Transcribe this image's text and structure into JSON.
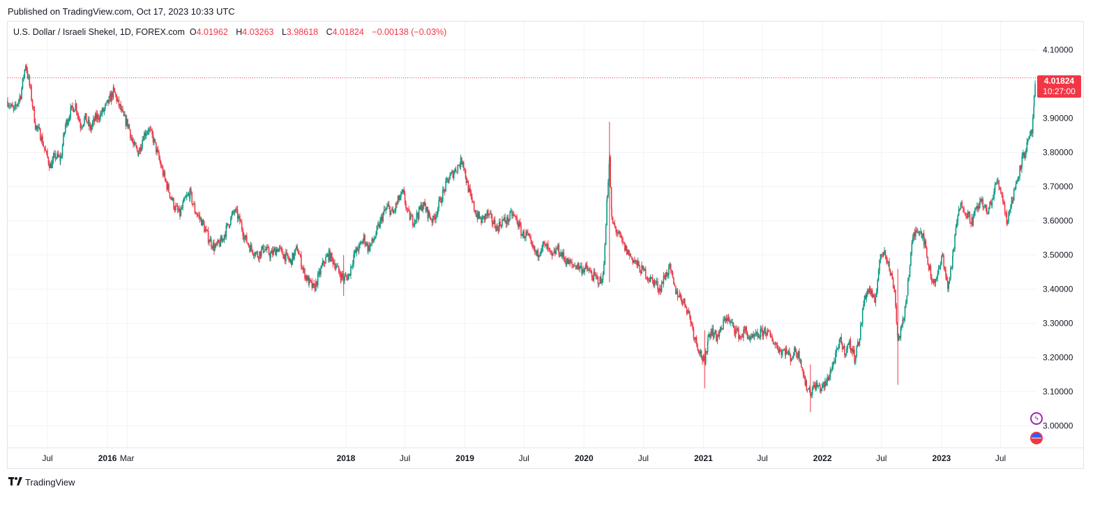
{
  "header": {
    "published": "Published on TradingView.com, Oct 17, 2023 10:33 UTC"
  },
  "legend": {
    "symbol": "U.S. Dollar / Israeli Shekel, 1D, FOREX.com",
    "open_label": "O",
    "open": "4.01962",
    "high_label": "H",
    "high": "4.03263",
    "low_label": "L",
    "low": "3.98618",
    "close_label": "C",
    "close": "4.01824",
    "change": "−0.00138 (−0.03%)"
  },
  "price_tag": {
    "price": "4.01824",
    "countdown": "10:27:00"
  },
  "footer": {
    "brand": "TradingView"
  },
  "colors": {
    "up": "#089981",
    "down": "#f23645",
    "grid": "#f0f3fa",
    "accent": "#f23645"
  },
  "icons": [
    "tradingview-logo-icon",
    "event-badge-icon",
    "us-flag-icon"
  ],
  "chart_data": {
    "type": "candlestick",
    "title": "",
    "xlabel": "",
    "ylabel": "",
    "ylim": [
      2.94,
      4.14
    ],
    "grid": true,
    "last_price": 4.01824,
    "y_ticks": [
      "4.10000",
      "3.90000",
      "3.80000",
      "3.70000",
      "3.60000",
      "3.50000",
      "3.40000",
      "3.30000",
      "3.20000",
      "3.10000",
      "3.00000"
    ],
    "y_tick_values": [
      4.1,
      3.9,
      3.8,
      3.7,
      3.6,
      3.5,
      3.4,
      3.3,
      3.2,
      3.1,
      3.0
    ],
    "x_ticks": [
      {
        "label": "Jul",
        "date": "2015-07-01",
        "bold": false
      },
      {
        "label": "2016",
        "date": "2016-01-01",
        "bold": true
      },
      {
        "label": "Mar",
        "date": "2016-03-01",
        "bold": false
      },
      {
        "label": "2018",
        "date": "2018-01-01",
        "bold": true
      },
      {
        "label": "Jul",
        "date": "2018-07-01",
        "bold": false
      },
      {
        "label": "2019",
        "date": "2019-01-01",
        "bold": true
      },
      {
        "label": "Jul",
        "date": "2019-07-01",
        "bold": false
      },
      {
        "label": "2020",
        "date": "2020-01-01",
        "bold": true
      },
      {
        "label": "Jul",
        "date": "2020-07-01",
        "bold": false
      },
      {
        "label": "2021",
        "date": "2021-01-01",
        "bold": true
      },
      {
        "label": "Jul",
        "date": "2021-07-01",
        "bold": false
      },
      {
        "label": "2022",
        "date": "2022-01-01",
        "bold": true
      },
      {
        "label": "Jul",
        "date": "2022-07-01",
        "bold": false
      },
      {
        "label": "2023",
        "date": "2023-01-01",
        "bold": true
      },
      {
        "label": "Jul",
        "date": "2023-07-01",
        "bold": false
      }
    ],
    "series": [
      {
        "close": [
          [
            "2015-03-01",
            3.95
          ],
          [
            "2015-03-20",
            3.92
          ],
          [
            "2015-04-10",
            3.97
          ],
          [
            "2015-04-25",
            4.06
          ],
          [
            "2015-05-10",
            3.98
          ],
          [
            "2015-05-25",
            3.88
          ],
          [
            "2015-06-10",
            3.85
          ],
          [
            "2015-06-25",
            3.8
          ],
          [
            "2015-07-10",
            3.76
          ],
          [
            "2015-07-25",
            3.79
          ],
          [
            "2015-08-10",
            3.78
          ],
          [
            "2015-08-25",
            3.88
          ],
          [
            "2015-09-10",
            3.92
          ],
          [
            "2015-09-25",
            3.94
          ],
          [
            "2015-10-10",
            3.88
          ],
          [
            "2015-10-25",
            3.9
          ],
          [
            "2015-11-10",
            3.87
          ],
          [
            "2015-11-25",
            3.9
          ],
          [
            "2015-12-10",
            3.91
          ],
          [
            "2015-12-25",
            3.93
          ],
          [
            "2016-01-10",
            3.96
          ],
          [
            "2016-01-20",
            3.98
          ],
          [
            "2016-02-05",
            3.94
          ],
          [
            "2016-02-20",
            3.9
          ],
          [
            "2016-03-05",
            3.88
          ],
          [
            "2016-03-20",
            3.82
          ],
          [
            "2016-04-05",
            3.8
          ],
          [
            "2016-04-20",
            3.85
          ],
          [
            "2016-05-05",
            3.87
          ],
          [
            "2016-05-20",
            3.84
          ],
          [
            "2016-06-10",
            3.77
          ],
          [
            "2016-06-25",
            3.72
          ],
          [
            "2016-07-10",
            3.68
          ],
          [
            "2016-07-25",
            3.64
          ],
          [
            "2016-08-10",
            3.62
          ],
          [
            "2016-08-25",
            3.66
          ],
          [
            "2016-09-10",
            3.68
          ],
          [
            "2016-09-25",
            3.63
          ],
          [
            "2016-10-15",
            3.6
          ],
          [
            "2016-11-05",
            3.55
          ],
          [
            "2016-11-25",
            3.52
          ],
          [
            "2016-12-15",
            3.54
          ],
          [
            "2017-01-10",
            3.6
          ],
          [
            "2017-01-25",
            3.63
          ],
          [
            "2017-02-10",
            3.6
          ],
          [
            "2017-02-25",
            3.55
          ],
          [
            "2017-03-15",
            3.52
          ],
          [
            "2017-04-05",
            3.5
          ],
          [
            "2017-04-25",
            3.52
          ],
          [
            "2017-05-15",
            3.5
          ],
          [
            "2017-06-05",
            3.52
          ],
          [
            "2017-06-25",
            3.5
          ],
          [
            "2017-07-15",
            3.48
          ],
          [
            "2017-08-05",
            3.52
          ],
          [
            "2017-08-25",
            3.45
          ],
          [
            "2017-09-10",
            3.42
          ],
          [
            "2017-09-25",
            3.4
          ],
          [
            "2017-10-10",
            3.44
          ],
          [
            "2017-10-25",
            3.48
          ],
          [
            "2017-11-10",
            3.5
          ],
          [
            "2017-11-25",
            3.48
          ],
          [
            "2017-12-10",
            3.45
          ],
          [
            "2017-12-25",
            3.43
          ],
          [
            "2018-01-10",
            3.44
          ],
          [
            "2018-01-25",
            3.5
          ],
          [
            "2018-02-10",
            3.52
          ],
          [
            "2018-02-25",
            3.55
          ],
          [
            "2018-03-10",
            3.52
          ],
          [
            "2018-03-25",
            3.54
          ],
          [
            "2018-04-10",
            3.58
          ],
          [
            "2018-04-25",
            3.62
          ],
          [
            "2018-05-10",
            3.64
          ],
          [
            "2018-05-25",
            3.62
          ],
          [
            "2018-06-10",
            3.66
          ],
          [
            "2018-06-25",
            3.68
          ],
          [
            "2018-07-10",
            3.62
          ],
          [
            "2018-07-25",
            3.6
          ],
          [
            "2018-08-10",
            3.62
          ],
          [
            "2018-08-25",
            3.65
          ],
          [
            "2018-09-10",
            3.62
          ],
          [
            "2018-09-25",
            3.6
          ],
          [
            "2018-10-10",
            3.64
          ],
          [
            "2018-10-25",
            3.68
          ],
          [
            "2018-11-10",
            3.72
          ],
          [
            "2018-11-25",
            3.74
          ],
          [
            "2018-12-10",
            3.76
          ],
          [
            "2018-12-25",
            3.78
          ],
          [
            "2019-01-05",
            3.72
          ],
          [
            "2019-01-20",
            3.66
          ],
          [
            "2019-02-05",
            3.62
          ],
          [
            "2019-02-20",
            3.6
          ],
          [
            "2019-03-10",
            3.62
          ],
          [
            "2019-03-25",
            3.6
          ],
          [
            "2019-04-10",
            3.58
          ],
          [
            "2019-04-25",
            3.6
          ],
          [
            "2019-05-10",
            3.6
          ],
          [
            "2019-05-25",
            3.62
          ],
          [
            "2019-06-10",
            3.6
          ],
          [
            "2019-06-25",
            3.56
          ],
          [
            "2019-07-10",
            3.56
          ],
          [
            "2019-07-25",
            3.52
          ],
          [
            "2019-08-10",
            3.5
          ],
          [
            "2019-08-25",
            3.53
          ],
          [
            "2019-09-10",
            3.52
          ],
          [
            "2019-09-25",
            3.49
          ],
          [
            "2019-10-10",
            3.52
          ],
          [
            "2019-10-25",
            3.5
          ],
          [
            "2019-11-10",
            3.48
          ],
          [
            "2019-11-25",
            3.47
          ],
          [
            "2019-12-10",
            3.47
          ],
          [
            "2019-12-25",
            3.46
          ],
          [
            "2020-01-10",
            3.46
          ],
          [
            "2020-01-25",
            3.44
          ],
          [
            "2020-02-10",
            3.43
          ],
          [
            "2020-02-25",
            3.42
          ],
          [
            "2020-03-05",
            3.52
          ],
          [
            "2020-03-12",
            3.68
          ],
          [
            "2020-03-19",
            3.78
          ],
          [
            "2020-03-26",
            3.6
          ],
          [
            "2020-04-05",
            3.58
          ],
          [
            "2020-04-20",
            3.55
          ],
          [
            "2020-05-05",
            3.52
          ],
          [
            "2020-05-20",
            3.5
          ],
          [
            "2020-06-05",
            3.48
          ],
          [
            "2020-06-20",
            3.46
          ],
          [
            "2020-07-05",
            3.45
          ],
          [
            "2020-07-20",
            3.43
          ],
          [
            "2020-08-05",
            3.42
          ],
          [
            "2020-08-20",
            3.4
          ],
          [
            "2020-09-05",
            3.44
          ],
          [
            "2020-09-20",
            3.46
          ],
          [
            "2020-10-05",
            3.4
          ],
          [
            "2020-10-20",
            3.38
          ],
          [
            "2020-11-05",
            3.36
          ],
          [
            "2020-11-20",
            3.32
          ],
          [
            "2020-12-05",
            3.26
          ],
          [
            "2020-12-20",
            3.22
          ],
          [
            "2021-01-05",
            3.18
          ],
          [
            "2021-01-15",
            3.26
          ],
          [
            "2021-01-25",
            3.28
          ],
          [
            "2021-02-10",
            3.26
          ],
          [
            "2021-02-25",
            3.28
          ],
          [
            "2021-03-10",
            3.32
          ],
          [
            "2021-03-25",
            3.3
          ],
          [
            "2021-04-10",
            3.28
          ],
          [
            "2021-04-25",
            3.26
          ],
          [
            "2021-05-10",
            3.28
          ],
          [
            "2021-05-25",
            3.25
          ],
          [
            "2021-06-10",
            3.26
          ],
          [
            "2021-06-25",
            3.27
          ],
          [
            "2021-07-10",
            3.28
          ],
          [
            "2021-07-25",
            3.26
          ],
          [
            "2021-08-10",
            3.24
          ],
          [
            "2021-08-25",
            3.22
          ],
          [
            "2021-09-10",
            3.22
          ],
          [
            "2021-09-25",
            3.2
          ],
          [
            "2021-10-10",
            3.22
          ],
          [
            "2021-10-25",
            3.2
          ],
          [
            "2021-11-10",
            3.12
          ],
          [
            "2021-11-25",
            3.1
          ],
          [
            "2021-12-10",
            3.12
          ],
          [
            "2021-12-25",
            3.11
          ],
          [
            "2022-01-10",
            3.12
          ],
          [
            "2022-01-25",
            3.16
          ],
          [
            "2022-02-10",
            3.2
          ],
          [
            "2022-02-25",
            3.25
          ],
          [
            "2022-03-10",
            3.22
          ],
          [
            "2022-03-25",
            3.24
          ],
          [
            "2022-04-10",
            3.2
          ],
          [
            "2022-04-25",
            3.26
          ],
          [
            "2022-05-10",
            3.38
          ],
          [
            "2022-05-25",
            3.4
          ],
          [
            "2022-06-10",
            3.36
          ],
          [
            "2022-06-25",
            3.48
          ],
          [
            "2022-07-10",
            3.52
          ],
          [
            "2022-07-25",
            3.46
          ],
          [
            "2022-08-10",
            3.4
          ],
          [
            "2022-08-20",
            3.25
          ],
          [
            "2022-09-05",
            3.3
          ],
          [
            "2022-09-20",
            3.42
          ],
          [
            "2022-10-05",
            3.55
          ],
          [
            "2022-10-20",
            3.58
          ],
          [
            "2022-11-05",
            3.56
          ],
          [
            "2022-11-20",
            3.48
          ],
          [
            "2022-12-05",
            3.42
          ],
          [
            "2022-12-20",
            3.44
          ],
          [
            "2023-01-05",
            3.5
          ],
          [
            "2023-01-20",
            3.4
          ],
          [
            "2023-02-05",
            3.5
          ],
          [
            "2023-02-20",
            3.62
          ],
          [
            "2023-03-05",
            3.65
          ],
          [
            "2023-03-20",
            3.62
          ],
          [
            "2023-04-05",
            3.6
          ],
          [
            "2023-04-20",
            3.64
          ],
          [
            "2023-05-05",
            3.66
          ],
          [
            "2023-05-20",
            3.62
          ],
          [
            "2023-06-05",
            3.66
          ],
          [
            "2023-06-20",
            3.72
          ],
          [
            "2023-07-05",
            3.68
          ],
          [
            "2023-07-20",
            3.6
          ],
          [
            "2023-08-05",
            3.66
          ],
          [
            "2023-08-20",
            3.72
          ],
          [
            "2023-09-05",
            3.78
          ],
          [
            "2023-09-20",
            3.82
          ],
          [
            "2023-10-05",
            3.86
          ],
          [
            "2023-10-12",
            3.95
          ],
          [
            "2023-10-17",
            4.018
          ]
        ]
      }
    ]
  }
}
